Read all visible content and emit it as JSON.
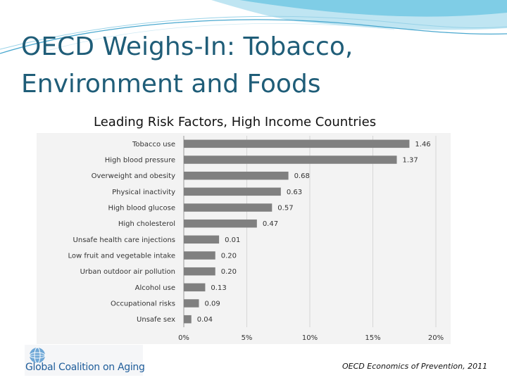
{
  "slide": {
    "title": "OECD Weighs-In:  Tobacco, Environment and Foods",
    "citation": "OECD Economics of Prevention, 2011",
    "logo_text": "Global Coalition on Aging",
    "colors": {
      "title": "#1f5d78",
      "bar": "#808080",
      "swoosh": "#5bb8d8"
    }
  },
  "chart_data": {
    "type": "bar",
    "orientation": "horizontal",
    "title": "Leading Risk Factors, High Income Countries",
    "categories": [
      "Tobacco use",
      "High blood pressure",
      "Overweight and obesity",
      "Physical inactivity",
      "High blood glucose",
      "High cholesterol",
      "Unsafe health care injections",
      "Low fruit and vegetable  intake",
      "Urban outdoor air pollution",
      "Alcohol use",
      "Occupational risks",
      "Unsafe sex"
    ],
    "values": [
      17.9,
      16.9,
      8.3,
      7.7,
      7.0,
      5.8,
      2.8,
      2.5,
      2.5,
      1.7,
      1.2,
      0.6
    ],
    "value_labels": [
      "1.46",
      "1.37",
      "0.68",
      "0.63",
      "0.57",
      "0.47",
      "0.01",
      "0.20",
      "0.20",
      "0.13",
      "0.09",
      "0.04"
    ],
    "xticks": [
      "0%",
      "5%",
      "10%",
      "15%",
      "20%"
    ],
    "xlim": [
      0,
      20
    ],
    "grid": true,
    "xlabel": "",
    "ylabel": ""
  }
}
